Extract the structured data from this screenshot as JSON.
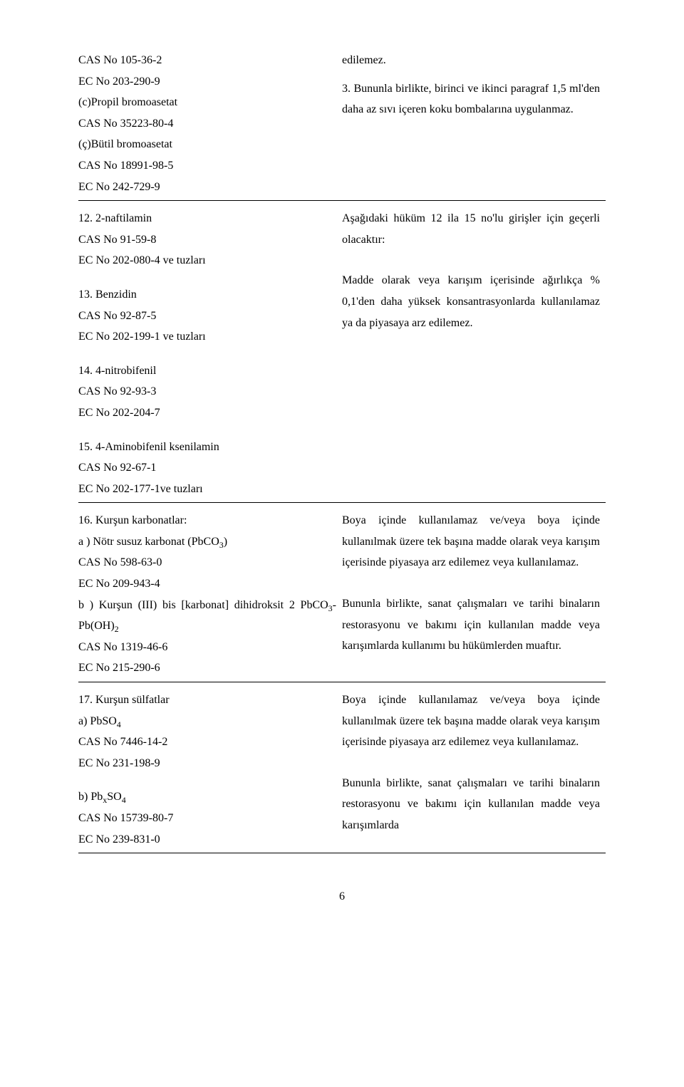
{
  "row1": {
    "left": {
      "l1": "CAS No 105-36-2",
      "l2": "EC No 203-290-9",
      "l3": "(c)Propil bromoasetat",
      "l4": "CAS No 35223-80-4",
      "l5": "(ç)Bütil bromoasetat",
      "l6": "CAS No 18991-98-5",
      "l7": "EC No 242-729-9"
    },
    "right": {
      "p1": "edilemez.",
      "p2": "3. Bununla birlikte, birinci ve ikinci paragraf 1,5 ml'den daha az sıvı içeren koku bombalarına uygulanmaz."
    }
  },
  "row2": {
    "left": {
      "b1l1": "12. 2-naftilamin",
      "b1l2": "CAS No 91-59-8",
      "b1l3": "EC No 202-080-4 ve tuzları",
      "b2l1": "13. Benzidin",
      "b2l2": "CAS No 92-87-5",
      "b2l3": "EC No 202-199-1 ve tuzları",
      "b3l1": "14. 4-nitrobifenil",
      "b3l2": "CAS No 92-93-3",
      "b3l3": "EC No 202-204-7",
      "b4l1": "15. 4-Aminobifenil ksenilamin",
      "b4l2": "CAS No 92-67-1",
      "b4l3": "EC No 202-177-1ve tuzları"
    },
    "right": {
      "p1": "Aşağıdaki hüküm 12 ila 15 no'lu girişler için geçerli olacaktır:",
      "p2": "Madde olarak veya karışım içerisinde ağırlıkça % 0,1'den daha yüksek konsantrasyonlarda kullanılamaz ya da piyasaya arz edilemez."
    }
  },
  "row3": {
    "left": {
      "l1": "16. Kurşun karbonatlar:",
      "l2a": "a ) Nötr susuz karbonat (PbCO",
      "l2b": "3",
      "l2c": ")",
      "l3": "CAS No 598-63-0",
      "l4": "EC No 209-943-4",
      "l5a": "b ) Kurşun (III) bis [karbonat] dihidroksit 2 PbCO",
      "l5b": "3",
      "l5c": "- Pb(OH)",
      "l5d": "2",
      "l6": "CAS No 1319-46-6",
      "l7": "EC No 215-290-6"
    },
    "right": {
      "p1": "Boya içinde kullanılamaz ve/veya boya içinde kullanılmak üzere tek başına madde olarak veya karışım içerisinde piyasaya arz edilemez veya kullanılamaz.",
      "p2": "Bununla birlikte, sanat çalışmaları ve tarihi binaların restorasyonu ve bakımı için kullanılan madde veya karışımlarda kullanımı bu hükümlerden muaftır."
    }
  },
  "row4": {
    "left": {
      "b1l1": "17. Kurşun sülfatlar",
      "b1l2a": "a) PbSO",
      "b1l2b": "4",
      "b1l3": "CAS No 7446-14-2",
      "b1l4": "EC No 231-198-9",
      "b2l1a": "b)  Pb",
      "b2l1b": "x",
      "b2l1c": "SO",
      "b2l1d": "4",
      "b2l2": "CAS No 15739-80-7",
      "b2l3": "EC No 239-831-0"
    },
    "right": {
      "p1": "Boya içinde kullanılamaz ve/veya boya içinde kullanılmak üzere tek başına madde olarak veya karışım içerisinde piyasaya arz edilemez veya kullanılamaz.",
      "p2": "Bununla birlikte, sanat çalışmaları ve tarihi binaların restorasyonu ve bakımı için kullanılan madde veya karışımlarda"
    }
  },
  "pageNumber": "6"
}
